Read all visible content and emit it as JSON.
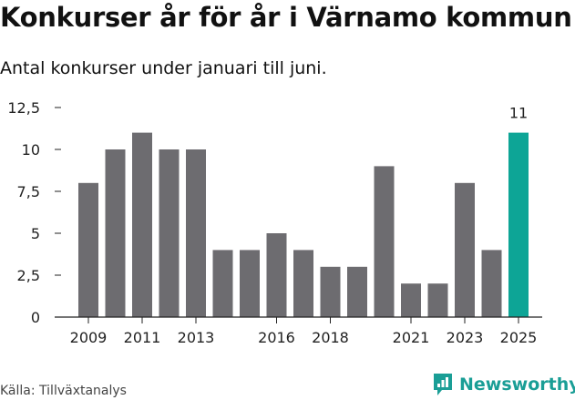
{
  "title": "Konkurser år för år i Värnamo kommun",
  "subtitle": "Antal konkurser under januari till juni.",
  "source": "Källa: Tillväxtanalys",
  "brand": "Newsworthy",
  "colors": {
    "bar": "#6d6c70",
    "highlight": "#0da596",
    "axis": "#222222",
    "brand": "#1a9e96"
  },
  "chart_data": {
    "type": "bar",
    "categories": [
      "2009",
      "2010",
      "2011",
      "2012",
      "2013",
      "2014",
      "2015",
      "2016",
      "2017",
      "2018",
      "2019",
      "2020",
      "2021",
      "2022",
      "2023",
      "2024",
      "2025"
    ],
    "values": [
      8,
      10,
      11,
      10,
      10,
      4,
      4,
      5,
      4,
      3,
      3,
      9,
      2,
      2,
      8,
      4,
      11
    ],
    "highlight_index": 16,
    "highlight_label": "11",
    "xtick_labels": [
      "2009",
      "2011",
      "2013",
      "2016",
      "2018",
      "2021",
      "2023",
      "2025"
    ],
    "yticks": [
      0,
      2.5,
      5,
      7.5,
      10,
      12.5
    ],
    "ytick_labels": [
      "0",
      "2,5",
      "5",
      "7,5",
      "10",
      "12,5"
    ],
    "ylim": [
      0,
      12.5
    ],
    "grid": false
  }
}
